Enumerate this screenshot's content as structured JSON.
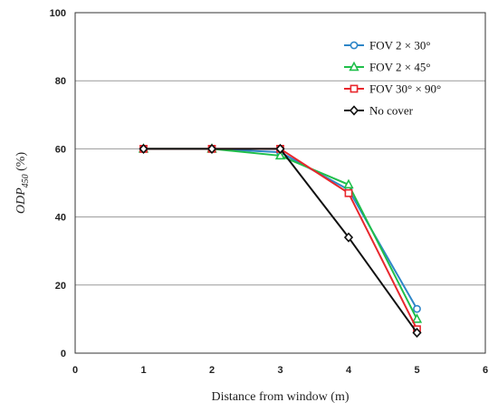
{
  "chart_data": {
    "type": "line",
    "xlabel": "Distance from window  (m)",
    "ylabel": {
      "main": "ODP",
      "sub": "450",
      "unit": " (%)"
    },
    "xlim": [
      0,
      6
    ],
    "ylim": [
      0,
      100
    ],
    "xticks": [
      "0",
      "1",
      "2",
      "3",
      "4",
      "5",
      "6"
    ],
    "yticks": [
      "0",
      "20",
      "40",
      "60",
      "80",
      "100"
    ],
    "grid": "horizontal",
    "legend_position": "top-right",
    "x": [
      1,
      2,
      3,
      4,
      5
    ],
    "series": [
      {
        "name": "FOV  2 × 30°",
        "color": "#2e86c8",
        "marker": "circle",
        "values": [
          60,
          60,
          59,
          48,
          13
        ]
      },
      {
        "name": "FOV  2 × 45°",
        "color": "#1fbf4a",
        "marker": "triangle",
        "values": [
          60,
          60,
          58,
          49.5,
          10
        ]
      },
      {
        "name": "FOV  30° × 90°",
        "color": "#e8262c",
        "marker": "square",
        "values": [
          60,
          60,
          60,
          47,
          7
        ]
      },
      {
        "name": "No cover",
        "color": "#111111",
        "marker": "diamond",
        "values": [
          60,
          60,
          60,
          34,
          6
        ]
      }
    ]
  }
}
